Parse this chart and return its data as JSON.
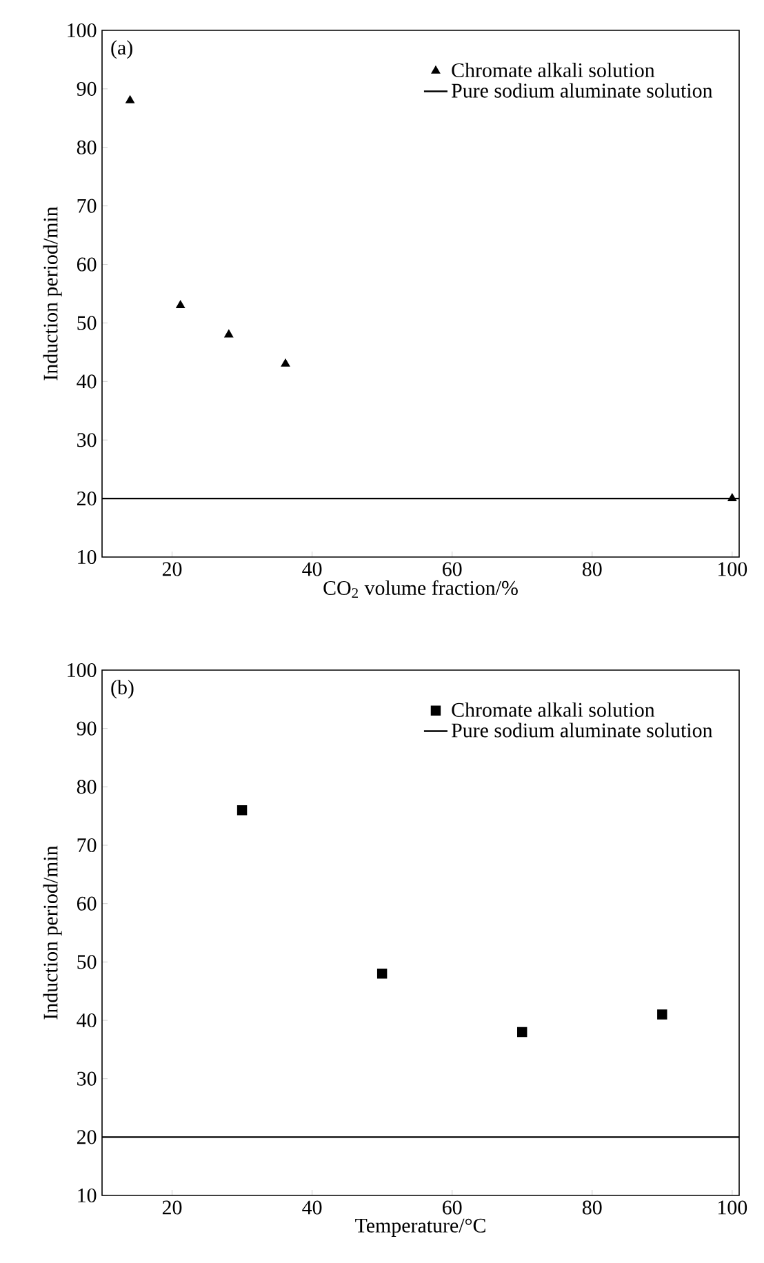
{
  "chart_data": [
    {
      "type": "scatter",
      "xlabel": "CO$_{2}$ volume fraction/%",
      "ylabel": "Induction period/min",
      "annotations": [
        "(a)"
      ],
      "marker": "triangle",
      "legend": "top right",
      "grid": false,
      "xlim": [
        10,
        101
      ],
      "xticks": [
        20,
        40,
        60,
        80,
        100
      ],
      "ylim": [
        10,
        100
      ],
      "yticks": [
        10,
        20,
        30,
        40,
        50,
        60,
        70,
        80,
        90,
        100
      ],
      "series": [
        {
          "name": "Chromate alkali solution",
          "color": "#000000",
          "x": [
            14,
            21.2,
            28.1,
            36.2,
            100
          ],
          "values": [
            88,
            53,
            48,
            43,
            20
          ]
        },
        {
          "name": "Pure sodium aluminate solution",
          "type": "line",
          "marker": "none",
          "color": "#000000",
          "x": [
            10,
            101
          ],
          "values": [
            20,
            20
          ]
        }
      ]
    },
    {
      "type": "scatter",
      "xlabel": "Temperature/°C",
      "ylabel": "Induction period/min",
      "annotations": [
        "(b)"
      ],
      "marker": "square",
      "legend": "top right",
      "grid": false,
      "xlim": [
        10,
        101
      ],
      "xticks": [
        20,
        40,
        60,
        80,
        100
      ],
      "ylim": [
        10,
        100
      ],
      "yticks": [
        10,
        20,
        30,
        40,
        50,
        60,
        70,
        80,
        90,
        100
      ],
      "series": [
        {
          "name": "Chromate alkali solution",
          "color": "#000000",
          "x": [
            30,
            50,
            70,
            90
          ],
          "values": [
            76,
            48,
            38,
            41
          ]
        },
        {
          "name": "Pure sodium aluminate solution",
          "type": "line",
          "marker": "none",
          "color": "#000000",
          "x": [
            10,
            101
          ],
          "values": [
            20,
            20
          ]
        }
      ]
    }
  ]
}
